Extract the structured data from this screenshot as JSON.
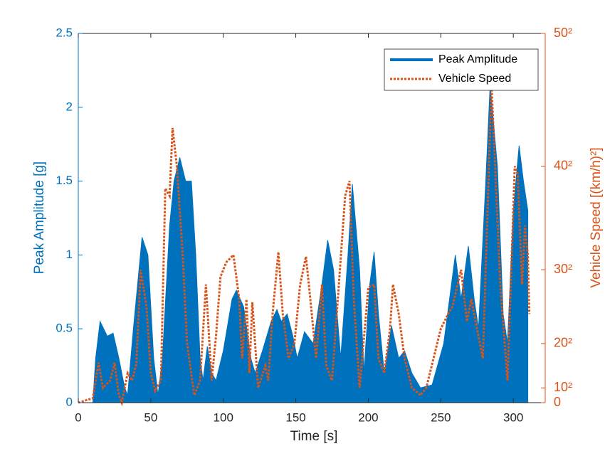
{
  "chart_data": {
    "type": "area_line",
    "xlabel": "Time [s]",
    "ylabel": "Peak Amplitude [g]",
    "y2label": "Vehicle Speed [(km/h)²]",
    "xlim": [
      0,
      322
    ],
    "xticks": [
      0,
      50,
      100,
      150,
      200,
      250,
      300
    ],
    "ylim": [
      0,
      2.5
    ],
    "yticks": [
      0,
      0.5,
      1,
      1.5,
      2,
      2.5
    ],
    "y2lim": [
      0,
      2500
    ],
    "y2ticks": [
      0,
      {
        "value": 100,
        "label": "10²"
      },
      {
        "value": 400,
        "label": "20²"
      },
      {
        "value": 900,
        "label": "30²"
      },
      {
        "value": 1600,
        "label": "40²"
      },
      {
        "value": 2500,
        "label": "50²"
      }
    ],
    "legend": "upper right",
    "series": [
      {
        "name": "Peak Amplitude",
        "color": "#0072BD",
        "style": "area",
        "x": [
          0,
          10,
          12,
          15,
          20,
          24,
          28,
          32,
          34,
          38,
          44,
          48,
          52,
          55,
          58,
          63,
          66,
          70,
          74,
          78,
          81,
          84,
          86,
          89,
          92,
          95,
          100,
          106,
          109,
          114,
          119,
          122,
          127,
          133,
          137,
          140,
          144,
          148,
          151,
          156,
          162,
          168,
          172,
          176,
          181,
          186,
          189,
          194,
          197,
          201,
          204,
          207,
          211,
          216,
          221,
          225,
          230,
          236,
          244,
          252,
          260,
          264,
          269,
          273,
          276,
          281,
          284,
          289,
          293,
          296,
          300,
          304,
          307,
          310
        ],
        "values": [
          0,
          0,
          0.3,
          0.55,
          0.45,
          0.47,
          0.3,
          0.1,
          0.05,
          0.5,
          1.12,
          1.0,
          0.3,
          0.05,
          0.3,
          1.2,
          1.5,
          1.66,
          1.5,
          1.5,
          1.0,
          0.3,
          0.15,
          0.38,
          0.2,
          0.15,
          0.35,
          0.7,
          0.76,
          0.65,
          0.3,
          0.2,
          0.35,
          0.55,
          0.63,
          0.55,
          0.6,
          0.45,
          0.3,
          0.48,
          0.4,
          0.8,
          1.1,
          0.9,
          0.3,
          1.0,
          1.48,
          0.9,
          0.2,
          0.8,
          1.02,
          0.6,
          0.2,
          0.52,
          0.3,
          0.35,
          0.2,
          0.1,
          0.12,
          0.4,
          1.0,
          0.7,
          1.06,
          0.7,
          0.5,
          1.5,
          2.15,
          1.6,
          0.6,
          0.4,
          1.3,
          1.74,
          1.5,
          1.3
        ]
      },
      {
        "name": "Vehicle Speed",
        "color": "#D95319",
        "style": "dotted",
        "axis": "y2",
        "x": [
          0,
          10,
          14,
          17,
          22,
          25,
          28,
          30,
          34,
          37,
          40,
          43,
          47,
          50,
          53,
          57,
          60,
          63,
          65,
          68,
          72,
          75,
          80,
          84,
          88,
          92,
          95,
          98,
          102,
          107,
          111,
          113,
          116,
          118,
          120,
          124,
          129,
          131,
          134,
          138,
          141,
          145,
          149,
          153,
          157,
          160,
          164,
          168,
          171,
          175,
          184,
          187,
          190,
          194,
          200,
          204,
          207,
          211,
          215,
          217,
          221,
          225,
          230,
          236,
          240,
          245,
          250,
          255,
          258,
          264,
          268,
          271,
          275,
          279,
          285,
          287,
          291,
          296,
          301,
          303,
          306,
          308,
          310,
          311
        ],
        "values": [
          0,
          30,
          270,
          100,
          150,
          270,
          50,
          0,
          200,
          150,
          260,
          900,
          650,
          200,
          80,
          150,
          1450,
          1400,
          1860,
          1600,
          1000,
          400,
          50,
          150,
          800,
          150,
          450,
          850,
          950,
          1000,
          700,
          300,
          700,
          200,
          680,
          100,
          250,
          150,
          600,
          1020,
          600,
          300,
          400,
          800,
          990,
          700,
          300,
          800,
          250,
          150,
          1400,
          1500,
          700,
          100,
          780,
          800,
          300,
          200,
          500,
          800,
          600,
          300,
          100,
          50,
          100,
          300,
          500,
          600,
          650,
          900,
          550,
          700,
          500,
          300,
          2150,
          1700,
          800,
          150,
          1600,
          1550,
          800,
          1200,
          1000,
          600
        ]
      }
    ]
  }
}
